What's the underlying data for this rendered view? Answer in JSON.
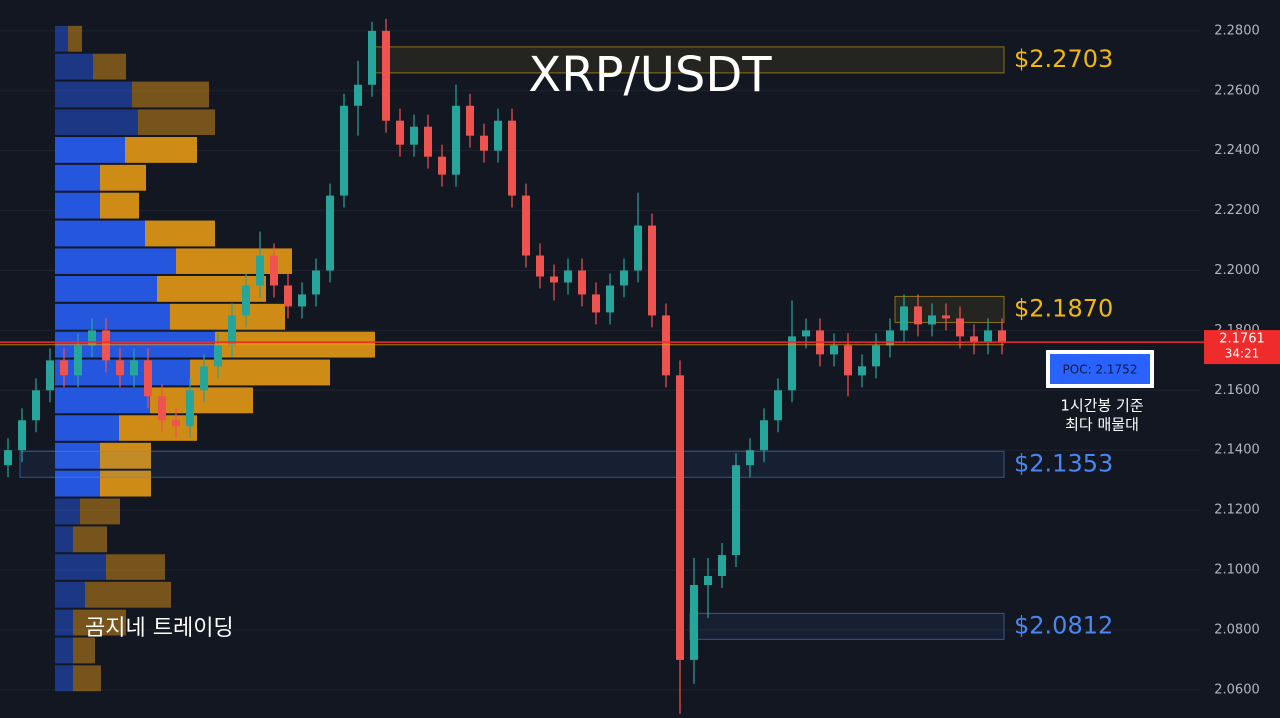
{
  "chart_data": {
    "type": "candlestick",
    "title": "XRP/USDT",
    "ylim": [
      2.0506,
      2.2903
    ],
    "yticks": [
      {
        "value": 2.06,
        "label": "2.0600"
      },
      {
        "value": 2.08,
        "label": "2.0800"
      },
      {
        "value": 2.1,
        "label": "2.1000"
      },
      {
        "value": 2.12,
        "label": "2.1200"
      },
      {
        "value": 2.14,
        "label": "2.1400"
      },
      {
        "value": 2.16,
        "label": "2.1600"
      },
      {
        "value": 2.18,
        "label": "2.1800"
      },
      {
        "value": 2.2,
        "label": "2.2000"
      },
      {
        "value": 2.22,
        "label": "2.2200"
      },
      {
        "value": 2.24,
        "label": "2.2400"
      },
      {
        "value": 2.26,
        "label": "2.2600"
      },
      {
        "value": 2.28,
        "label": "2.2800"
      }
    ],
    "grid": true,
    "up_color": "#26a69a",
    "down_color": "#ef5350",
    "open": [
      2.135,
      2.14,
      2.15,
      2.16,
      2.17,
      2.165,
      2.175,
      2.18,
      2.17,
      2.165,
      2.17,
      2.158,
      2.15,
      2.148,
      2.16,
      2.168,
      2.175,
      2.185,
      2.195,
      2.205,
      2.195,
      2.188,
      2.192,
      2.2,
      2.225,
      2.255,
      2.262,
      2.28,
      2.25,
      2.242,
      2.248,
      2.238,
      2.232,
      2.255,
      2.245,
      2.24,
      2.25,
      2.225,
      2.205,
      2.198,
      2.196,
      2.2,
      2.192,
      2.186,
      2.195,
      2.2,
      2.215,
      2.185,
      2.165,
      2.07,
      2.095,
      2.098,
      2.105,
      2.135,
      2.14,
      2.15,
      2.16,
      2.178,
      2.18,
      2.172,
      2.175,
      2.165,
      2.168,
      2.175,
      2.18,
      2.188,
      2.182,
      2.185,
      2.184,
      2.178,
      2.176,
      2.18
    ],
    "high": [
      2.144,
      2.154,
      2.164,
      2.174,
      2.174,
      2.179,
      2.184,
      2.184,
      2.174,
      2.174,
      2.174,
      2.162,
      2.154,
      2.164,
      2.172,
      2.179,
      2.189,
      2.199,
      2.213,
      2.209,
      2.199,
      2.196,
      2.204,
      2.229,
      2.259,
      2.27,
      2.283,
      2.284,
      2.254,
      2.252,
      2.252,
      2.242,
      2.262,
      2.259,
      2.249,
      2.254,
      2.254,
      2.229,
      2.209,
      2.202,
      2.204,
      2.204,
      2.196,
      2.199,
      2.204,
      2.226,
      2.219,
      2.189,
      2.17,
      2.104,
      2.104,
      2.109,
      2.139,
      2.144,
      2.154,
      2.164,
      2.19,
      2.184,
      2.184,
      2.179,
      2.179,
      2.172,
      2.179,
      2.184,
      2.192,
      2.192,
      2.189,
      2.189,
      2.188,
      2.182,
      2.184,
      2.184
    ],
    "low": [
      2.131,
      2.136,
      2.146,
      2.156,
      2.161,
      2.161,
      2.171,
      2.166,
      2.161,
      2.161,
      2.154,
      2.146,
      2.144,
      2.144,
      2.156,
      2.164,
      2.171,
      2.181,
      2.191,
      2.191,
      2.184,
      2.184,
      2.188,
      2.196,
      2.221,
      2.245,
      2.258,
      2.246,
      2.238,
      2.238,
      2.234,
      2.228,
      2.228,
      2.241,
      2.236,
      2.236,
      2.221,
      2.201,
      2.194,
      2.19,
      2.192,
      2.188,
      2.182,
      2.182,
      2.191,
      2.196,
      2.181,
      2.161,
      2.052,
      2.062,
      2.084,
      2.094,
      2.101,
      2.131,
      2.136,
      2.146,
      2.156,
      2.174,
      2.168,
      2.168,
      2.158,
      2.161,
      2.164,
      2.171,
      2.176,
      2.178,
      2.178,
      2.18,
      2.174,
      2.172,
      2.172,
      2.172
    ],
    "close": [
      2.14,
      2.15,
      2.16,
      2.17,
      2.165,
      2.175,
      2.18,
      2.17,
      2.165,
      2.17,
      2.158,
      2.15,
      2.148,
      2.16,
      2.168,
      2.175,
      2.185,
      2.195,
      2.205,
      2.195,
      2.188,
      2.192,
      2.2,
      2.225,
      2.255,
      2.262,
      2.28,
      2.25,
      2.242,
      2.248,
      2.238,
      2.232,
      2.255,
      2.245,
      2.24,
      2.25,
      2.225,
      2.205,
      2.198,
      2.196,
      2.2,
      2.192,
      2.186,
      2.195,
      2.2,
      2.215,
      2.185,
      2.165,
      2.07,
      2.095,
      2.098,
      2.105,
      2.135,
      2.14,
      2.15,
      2.16,
      2.178,
      2.18,
      2.172,
      2.175,
      2.165,
      2.168,
      2.175,
      2.18,
      2.188,
      2.182,
      2.185,
      2.184,
      2.178,
      2.176,
      2.18,
      2.1761
    ],
    "profile": {
      "bins": [
        2.282,
        2.2727,
        2.2634,
        2.2541,
        2.2449,
        2.2356,
        2.2263,
        2.217,
        2.2077,
        2.1985,
        2.1892,
        2.1799,
        2.1706,
        2.1613,
        2.152,
        2.1428,
        2.1335,
        2.1242,
        2.1149,
        2.1056,
        2.0964,
        2.0871,
        2.0778,
        2.0685,
        2.0592
      ],
      "buy": [
        13,
        38,
        77,
        83,
        70,
        45,
        45,
        90,
        121,
        102,
        115,
        160,
        135,
        95,
        64,
        45,
        45,
        25,
        18,
        51,
        30,
        18,
        18,
        18
      ],
      "sell": [
        14,
        33,
        77,
        77,
        72,
        46,
        39,
        70,
        116,
        109,
        115,
        160,
        140,
        103,
        78,
        51,
        51,
        40,
        34,
        59,
        86,
        53,
        22,
        28
      ],
      "buy_color": "#2962ff",
      "sell_color": "#f0a013"
    },
    "levels": {
      "values": [
        2.2703,
        2.187,
        2.1353,
        2.0812
      ],
      "value_labels": [
        "$2.2703",
        "$2.1870",
        "$2.1353",
        "$2.0812"
      ],
      "colors": [
        "#f0b90b",
        "#f0b90b",
        "#4a86f0",
        "#4a86f0"
      ]
    },
    "last_price": 2.1761,
    "countdown": "34:21",
    "poc": {
      "value": 2.1752,
      "label": "POC: 2.1752"
    },
    "annotation": [
      "1시간봉 기준",
      "최다 매물대"
    ],
    "watermark": "곰지네 트레이딩"
  }
}
